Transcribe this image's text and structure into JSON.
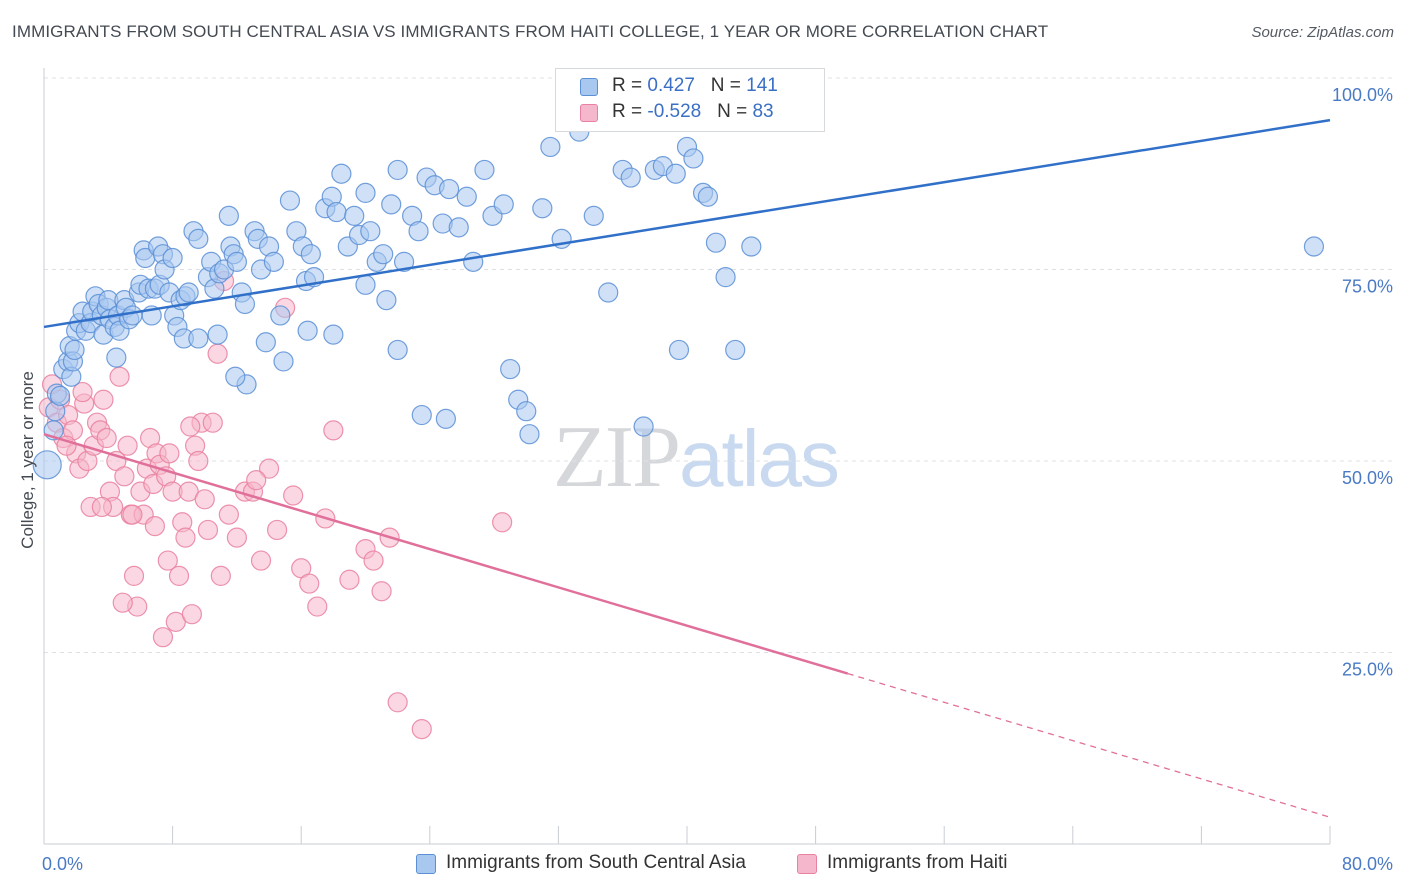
{
  "title": "IMMIGRANTS FROM SOUTH CENTRAL ASIA VS IMMIGRANTS FROM HAITI COLLEGE, 1 YEAR OR MORE CORRELATION CHART",
  "source": "Source: ZipAtlas.com",
  "watermark": {
    "zip": "ZIP",
    "atlas": "atlas"
  },
  "legend": {
    "rows": [
      {
        "r_label": "R = ",
        "r_value": "0.427",
        "n_label": "N = ",
        "n_value": "141",
        "color": "#a9c8f0"
      },
      {
        "r_label": "R = ",
        "r_value": "-0.528",
        "n_label": "N = ",
        "n_value": "83",
        "color": "#f5b7cb"
      }
    ]
  },
  "bottom_legend": [
    {
      "label": "Immigrants from South Central Asia",
      "color": "#a9c8f0"
    },
    {
      "label": "Immigrants from Haiti",
      "color": "#f5b7cb"
    }
  ],
  "colors": {
    "blue_fill": "#a9c8f0",
    "blue_stroke": "#5b8fd6",
    "blue_line": "#3170c8",
    "pink_fill": "#f5b7cb",
    "pink_stroke": "#e9809f",
    "pink_line": "#e0709a",
    "grid": "#dde1e6",
    "axis": "#c9cdd3"
  },
  "chart_data": {
    "type": "scatter",
    "title": "IMMIGRANTS FROM SOUTH CENTRAL ASIA VS IMMIGRANTS FROM HAITI COLLEGE, 1 YEAR OR MORE CORRELATION CHART",
    "ylabel": "College, 1 year or more",
    "xlabel": "",
    "xlim": [
      0,
      80
    ],
    "ylim": [
      0,
      105
    ],
    "x_tick_labels": [
      "0.0%",
      "80.0%"
    ],
    "y_ticks": [
      25,
      50,
      75,
      100
    ],
    "y_tick_labels": [
      "25.0%",
      "50.0%",
      "75.0%",
      "100.0%"
    ],
    "grid": true,
    "legend_placement": "top-center",
    "series": [
      {
        "name": "Immigrants from South Central Asia",
        "r": 0.427,
        "n": 141,
        "trend": {
          "x": [
            0,
            80
          ],
          "y": [
            67.5,
            94.5
          ],
          "dashed_from_x": null
        },
        "points": [
          [
            0.2,
            49.5
          ],
          [
            0.6,
            54
          ],
          [
            0.7,
            56.5
          ],
          [
            0.8,
            58.8
          ],
          [
            1.0,
            58.5
          ],
          [
            1.2,
            62
          ],
          [
            1.5,
            63
          ],
          [
            1.6,
            65
          ],
          [
            1.7,
            61
          ],
          [
            1.8,
            63
          ],
          [
            1.9,
            64.5
          ],
          [
            2.0,
            67
          ],
          [
            2.2,
            68
          ],
          [
            2.4,
            69.5
          ],
          [
            2.6,
            67
          ],
          [
            2.9,
            68
          ],
          [
            3.0,
            69.5
          ],
          [
            3.2,
            71.5
          ],
          [
            3.4,
            70.5
          ],
          [
            3.6,
            69
          ],
          [
            3.7,
            66.5
          ],
          [
            3.9,
            70
          ],
          [
            4.0,
            71
          ],
          [
            4.1,
            68.5
          ],
          [
            4.4,
            67.5
          ],
          [
            4.5,
            63.5
          ],
          [
            4.6,
            69
          ],
          [
            4.7,
            67
          ],
          [
            5.0,
            71
          ],
          [
            5.1,
            70
          ],
          [
            5.3,
            68.5
          ],
          [
            5.5,
            69
          ],
          [
            5.9,
            72
          ],
          [
            6.0,
            73
          ],
          [
            6.2,
            77.5
          ],
          [
            6.3,
            76.5
          ],
          [
            6.5,
            72.5
          ],
          [
            6.7,
            69
          ],
          [
            6.9,
            72.5
          ],
          [
            7.1,
            78
          ],
          [
            7.2,
            73
          ],
          [
            7.4,
            77
          ],
          [
            7.5,
            75
          ],
          [
            7.8,
            72
          ],
          [
            8.0,
            76.5
          ],
          [
            8.1,
            69
          ],
          [
            8.3,
            67.5
          ],
          [
            8.5,
            71
          ],
          [
            8.7,
            66
          ],
          [
            8.8,
            71.5
          ],
          [
            9.0,
            72
          ],
          [
            9.3,
            80
          ],
          [
            9.6,
            79
          ],
          [
            10.2,
            74
          ],
          [
            10.4,
            76
          ],
          [
            10.6,
            72.5
          ],
          [
            10.9,
            74.5
          ],
          [
            11.2,
            75
          ],
          [
            11.5,
            82
          ],
          [
            11.6,
            78
          ],
          [
            11.8,
            77
          ],
          [
            12.0,
            76
          ],
          [
            12.3,
            72
          ],
          [
            12.5,
            70.5
          ],
          [
            13.1,
            80
          ],
          [
            13.3,
            79
          ],
          [
            13.5,
            75
          ],
          [
            14.0,
            78
          ],
          [
            14.3,
            76
          ],
          [
            14.7,
            69
          ],
          [
            15.3,
            84
          ],
          [
            15.7,
            80
          ],
          [
            16.1,
            78
          ],
          [
            16.3,
            73.5
          ],
          [
            16.6,
            77
          ],
          [
            16.8,
            74
          ],
          [
            17.5,
            83
          ],
          [
            17.9,
            84.5
          ],
          [
            18.2,
            82.5
          ],
          [
            18.5,
            87.5
          ],
          [
            18.9,
            78
          ],
          [
            19.3,
            82
          ],
          [
            19.6,
            79.5
          ],
          [
            20.0,
            85
          ],
          [
            20.3,
            80
          ],
          [
            20.7,
            76
          ],
          [
            21.1,
            77
          ],
          [
            21.6,
            83.5
          ],
          [
            22.0,
            88
          ],
          [
            22.4,
            76
          ],
          [
            22.9,
            82
          ],
          [
            23.3,
            80
          ],
          [
            23.8,
            87
          ],
          [
            24.3,
            86
          ],
          [
            24.8,
            81
          ],
          [
            25.2,
            85.5
          ],
          [
            25.8,
            80.5
          ],
          [
            26.3,
            84.5
          ],
          [
            26.7,
            76
          ],
          [
            27.4,
            88
          ],
          [
            27.9,
            82
          ],
          [
            28.6,
            83.5
          ],
          [
            29.0,
            62
          ],
          [
            29.5,
            58
          ],
          [
            30.0,
            56.5
          ],
          [
            30.2,
            53.5
          ],
          [
            31.0,
            83
          ],
          [
            31.5,
            91
          ],
          [
            32.2,
            79
          ],
          [
            33.3,
            93
          ],
          [
            34.2,
            82
          ],
          [
            35.1,
            72
          ],
          [
            36.0,
            88
          ],
          [
            36.5,
            87
          ],
          [
            37.3,
            54.5
          ],
          [
            38.0,
            88
          ],
          [
            38.5,
            88.5
          ],
          [
            39.3,
            87.5
          ],
          [
            39.5,
            64.5
          ],
          [
            40.0,
            91
          ],
          [
            40.4,
            89.5
          ],
          [
            41.0,
            85
          ],
          [
            41.3,
            84.5
          ],
          [
            41.8,
            78.5
          ],
          [
            42.4,
            74
          ],
          [
            43.0,
            64.5
          ],
          [
            44.0,
            78
          ],
          [
            20.0,
            73
          ],
          [
            21.3,
            71
          ],
          [
            22.0,
            64.5
          ],
          [
            23.5,
            56
          ],
          [
            25.0,
            55.5
          ],
          [
            18.0,
            66.5
          ],
          [
            16.4,
            67
          ],
          [
            14.9,
            63
          ],
          [
            13.8,
            65.5
          ],
          [
            12.6,
            60
          ],
          [
            11.9,
            61
          ],
          [
            10.8,
            66.5
          ],
          [
            9.6,
            66
          ],
          [
            79.0,
            78
          ]
        ]
      },
      {
        "name": "Immigrants from Haiti",
        "r": -0.528,
        "n": 83,
        "trend": {
          "x": [
            0,
            80
          ],
          "y": [
            53.5,
            3.5
          ],
          "dashed_from_x": 50
        },
        "points": [
          [
            0.3,
            57
          ],
          [
            0.5,
            60
          ],
          [
            0.8,
            55
          ],
          [
            1.0,
            58
          ],
          [
            1.2,
            53
          ],
          [
            1.5,
            56
          ],
          [
            1.8,
            54
          ],
          [
            2.0,
            51
          ],
          [
            2.2,
            49
          ],
          [
            2.5,
            57.5
          ],
          [
            2.7,
            50
          ],
          [
            2.9,
            44
          ],
          [
            3.1,
            52
          ],
          [
            3.3,
            55
          ],
          [
            3.5,
            54
          ],
          [
            3.7,
            58
          ],
          [
            3.9,
            53
          ],
          [
            4.1,
            46
          ],
          [
            4.3,
            44
          ],
          [
            4.5,
            50
          ],
          [
            4.7,
            61
          ],
          [
            5.0,
            48
          ],
          [
            5.2,
            52
          ],
          [
            5.4,
            43
          ],
          [
            5.6,
            35
          ],
          [
            5.8,
            31
          ],
          [
            6.0,
            46
          ],
          [
            6.2,
            43
          ],
          [
            6.4,
            49
          ],
          [
            6.6,
            53
          ],
          [
            6.8,
            47
          ],
          [
            7.0,
            51
          ],
          [
            7.2,
            49.5
          ],
          [
            7.4,
            27
          ],
          [
            7.6,
            48
          ],
          [
            7.8,
            51
          ],
          [
            8.0,
            46
          ],
          [
            8.2,
            29
          ],
          [
            8.4,
            35
          ],
          [
            8.6,
            42
          ],
          [
            8.8,
            40
          ],
          [
            9.0,
            46
          ],
          [
            9.2,
            30
          ],
          [
            9.4,
            52
          ],
          [
            9.6,
            50
          ],
          [
            9.8,
            55
          ],
          [
            10.0,
            45
          ],
          [
            10.2,
            41
          ],
          [
            10.5,
            55
          ],
          [
            10.8,
            64
          ],
          [
            11.0,
            35
          ],
          [
            11.5,
            43
          ],
          [
            12.0,
            40
          ],
          [
            12.5,
            46
          ],
          [
            13.0,
            46
          ],
          [
            13.5,
            37
          ],
          [
            14.0,
            49
          ],
          [
            14.5,
            41
          ],
          [
            15.0,
            70
          ],
          [
            15.5,
            45.5
          ],
          [
            16.0,
            36
          ],
          [
            16.5,
            34
          ],
          [
            17.0,
            31
          ],
          [
            17.5,
            42.5
          ],
          [
            18.0,
            54
          ],
          [
            19.0,
            34.5
          ],
          [
            20.0,
            38.5
          ],
          [
            20.5,
            37
          ],
          [
            21.0,
            33
          ],
          [
            21.5,
            40
          ],
          [
            22.0,
            18.5
          ],
          [
            23.5,
            15
          ],
          [
            28.5,
            42
          ],
          [
            4.9,
            31.5
          ],
          [
            2.4,
            59
          ],
          [
            1.4,
            52
          ],
          [
            6.9,
            41.5
          ],
          [
            9.1,
            54.5
          ],
          [
            11.2,
            73.5
          ],
          [
            13.2,
            47.5
          ],
          [
            3.6,
            44
          ],
          [
            5.5,
            43
          ],
          [
            7.7,
            37
          ]
        ]
      }
    ]
  }
}
